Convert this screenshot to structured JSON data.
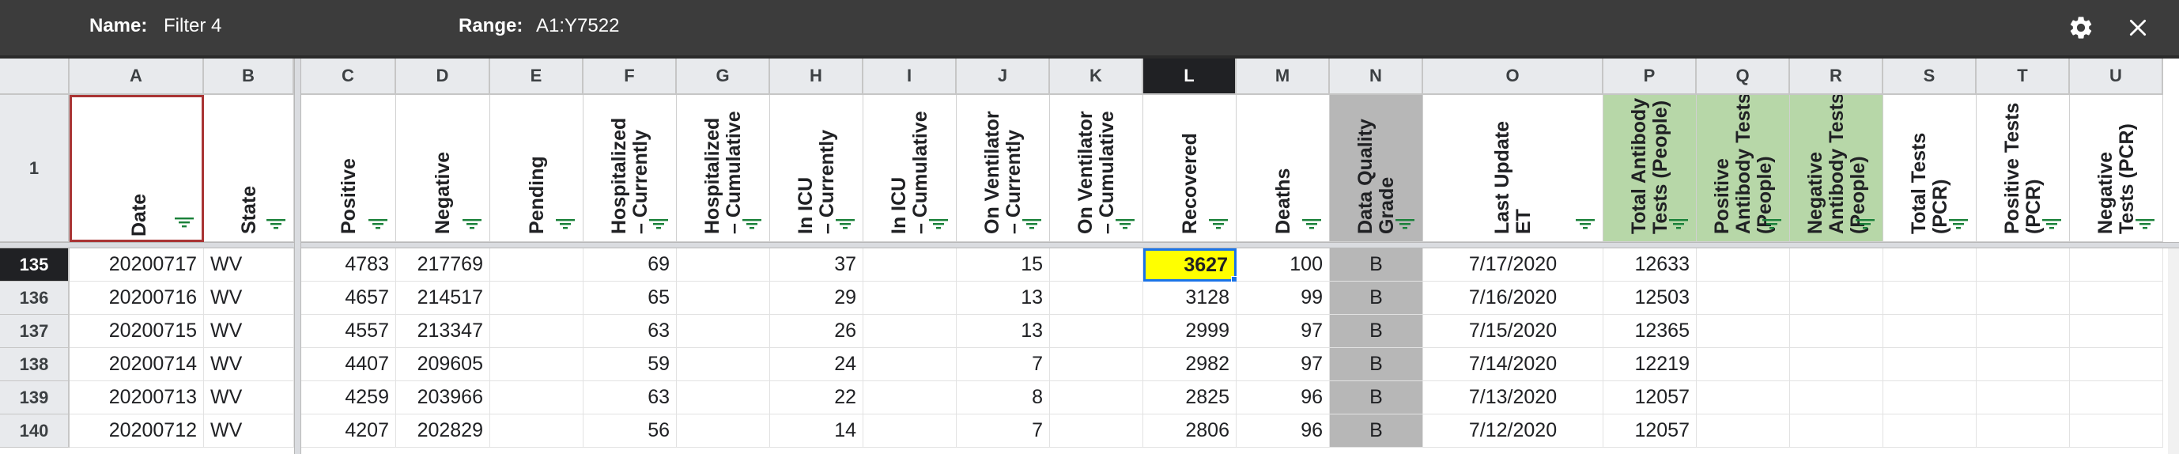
{
  "toolbar": {
    "name_label": "Name:",
    "name_value": "Filter 4",
    "range_label": "Range:",
    "range_value": "A1:Y7522",
    "icons": [
      "gear-icon",
      "close-icon"
    ]
  },
  "columns": [
    "A",
    "B",
    "C",
    "D",
    "E",
    "F",
    "G",
    "H",
    "I",
    "J",
    "K",
    "L",
    "M",
    "N",
    "O",
    "P",
    "Q",
    "R",
    "S",
    "T",
    "U"
  ],
  "selected_column": "L",
  "header_row_number": "1",
  "headers": [
    "Date",
    "State",
    "Positive",
    "Negative",
    "Pending",
    "Hospitalized\n– Currently",
    "Hospitalized\n– Cumulative",
    "In ICU\n– Currently",
    "In ICU\n– Cumulative",
    "On Ventilator\n– Currently",
    "On Ventilator\n– Cumulative",
    "Recovered",
    "Deaths",
    "Data Quality\nGrade",
    "Last Update\nET",
    "Total Antibody\nTests (People)",
    "Positive\nAntibody Tests\n(People)",
    "Negative\nAntibody Tests\n(People)",
    "Total Tests\n(PCR)",
    "Positive Tests\n(PCR)",
    "Negative\nTests (PCR)"
  ],
  "rows": [
    {
      "num": "135",
      "cells": [
        "20200717",
        "WV",
        "4783",
        "217769",
        "",
        "69",
        "",
        "37",
        "",
        "15",
        "",
        "3627",
        "100",
        "B",
        "7/17/2020",
        "12633",
        "",
        "",
        "",
        "",
        ""
      ]
    },
    {
      "num": "136",
      "cells": [
        "20200716",
        "WV",
        "4657",
        "214517",
        "",
        "65",
        "",
        "29",
        "",
        "13",
        "",
        "3128",
        "99",
        "B",
        "7/16/2020",
        "12503",
        "",
        "",
        "",
        "",
        ""
      ]
    },
    {
      "num": "137",
      "cells": [
        "20200715",
        "WV",
        "4557",
        "213347",
        "",
        "63",
        "",
        "26",
        "",
        "13",
        "",
        "2999",
        "97",
        "B",
        "7/15/2020",
        "12365",
        "",
        "",
        "",
        "",
        ""
      ]
    },
    {
      "num": "138",
      "cells": [
        "20200714",
        "WV",
        "4407",
        "209605",
        "",
        "59",
        "",
        "24",
        "",
        "7",
        "",
        "2982",
        "97",
        "B",
        "7/14/2020",
        "12219",
        "",
        "",
        "",
        "",
        ""
      ]
    },
    {
      "num": "139",
      "cells": [
        "20200713",
        "WV",
        "4259",
        "203966",
        "",
        "63",
        "",
        "22",
        "",
        "8",
        "",
        "2825",
        "96",
        "B",
        "7/13/2020",
        "12057",
        "",
        "",
        "",
        "",
        ""
      ]
    },
    {
      "num": "140",
      "cells": [
        "20200712",
        "WV",
        "4207",
        "202829",
        "",
        "56",
        "",
        "14",
        "",
        "7",
        "",
        "2806",
        "96",
        "B",
        "7/12/2020",
        "12057",
        "",
        "",
        "",
        "",
        ""
      ]
    }
  ],
  "selected_row": "135",
  "colors": {
    "header_green": "#b7d7a8",
    "grade_gray": "#b7b7b7",
    "highlight": "#ffff00",
    "selection_blue": "#1a73e8",
    "filter_green": "#188038"
  }
}
